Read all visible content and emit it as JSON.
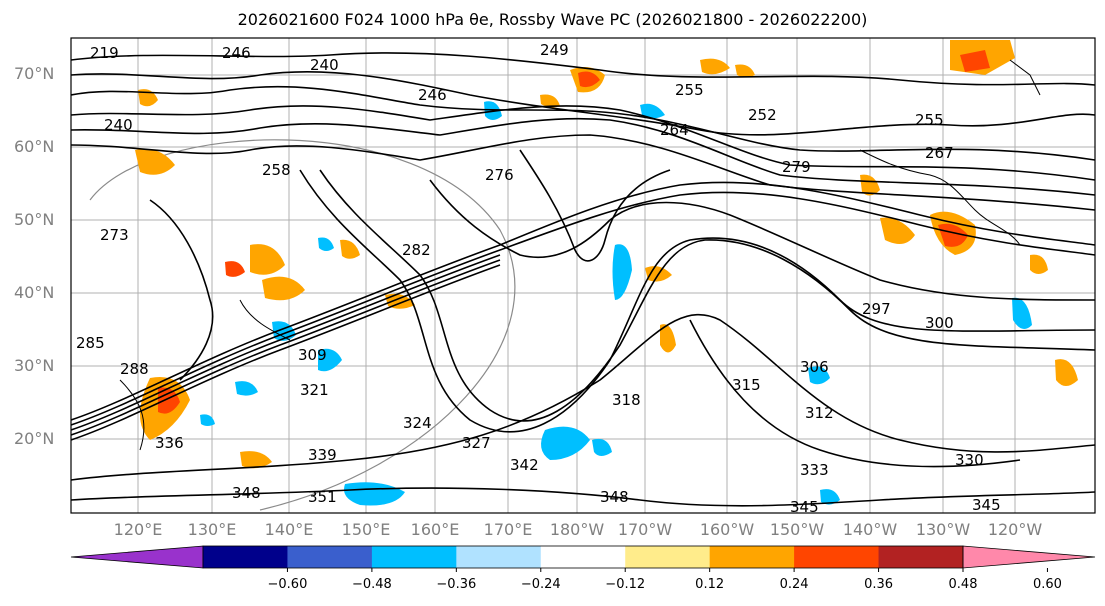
{
  "title": "2026021600 F024 1000 hPa θe, Rossby Wave PC (2026021800 - 2026022200)",
  "latitude_labels": [
    "70°N",
    "60°N",
    "50°N",
    "40°N",
    "30°N",
    "20°N"
  ],
  "longitude_labels": [
    "120°E",
    "130°E",
    "140°E",
    "150°E",
    "160°E",
    "170°E",
    "180°W",
    "170°W",
    "160°W",
    "150°W",
    "140°W",
    "130°W",
    "120°W"
  ],
  "contour_labels": [
    "246",
    "240",
    "249",
    "246",
    "240",
    "255",
    "252",
    "255",
    "267",
    "258",
    "276",
    "279",
    "282",
    "297",
    "300",
    "306",
    "315",
    "312",
    "324",
    "327",
    "339",
    "336",
    "348",
    "351",
    "342",
    "348",
    "345",
    "333",
    "330",
    "345",
    "285",
    "288",
    "309",
    "321",
    "318",
    "219",
    "273",
    "264"
  ],
  "colorbar": {
    "ticks": [
      "−0.60",
      "−0.48",
      "−0.36",
      "−0.24",
      "−0.12",
      "0.12",
      "0.24",
      "0.36",
      "0.48",
      "0.60"
    ],
    "colors": [
      "#9932cc",
      "#00008b",
      "#3a5fcd",
      "#00bfff",
      "#b0e2ff",
      "#ffffff",
      "#ffec8b",
      "#ffa500",
      "#ff4500",
      "#b22222",
      "#ff88aa"
    ]
  }
}
